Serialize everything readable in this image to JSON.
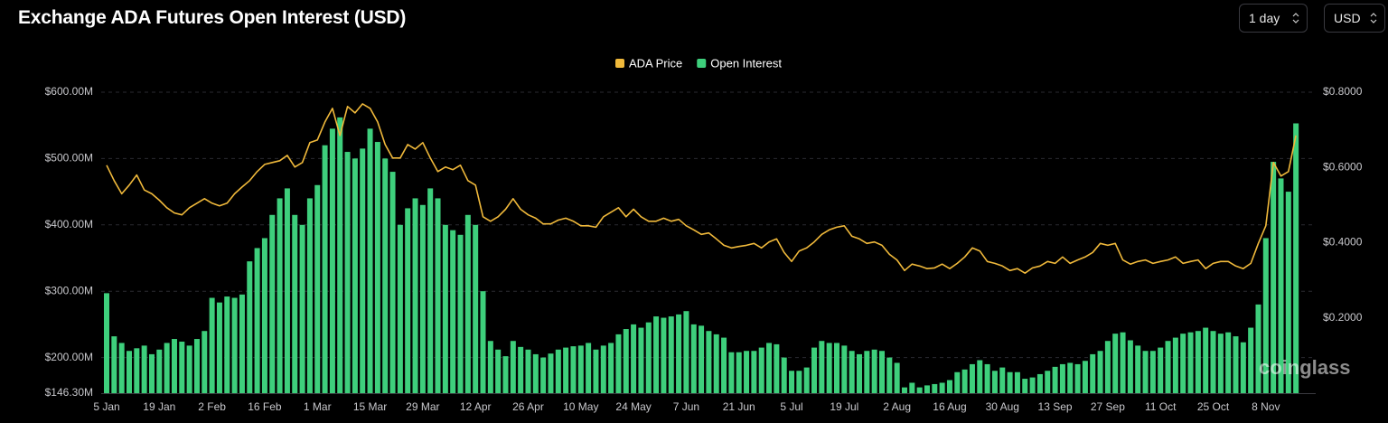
{
  "controls": {
    "interval": "1 day",
    "currency": "USD"
  },
  "chart_data": {
    "type": "combo",
    "title": "Exchange ADA Futures Open Interest (USD)",
    "watermark": "coinglass",
    "grid": true,
    "legend": "top",
    "categories": [
      "5 Jan",
      null,
      null,
      null,
      null,
      null,
      null,
      "19 Jan",
      null,
      null,
      null,
      null,
      null,
      null,
      "2 Feb",
      null,
      null,
      null,
      null,
      null,
      null,
      "16 Feb",
      null,
      null,
      null,
      null,
      null,
      null,
      "1 Mar",
      null,
      null,
      null,
      null,
      null,
      null,
      "15 Mar",
      null,
      null,
      null,
      null,
      null,
      null,
      "29 Mar",
      null,
      null,
      null,
      null,
      null,
      null,
      "12 Apr",
      null,
      null,
      null,
      null,
      null,
      null,
      "26 Apr",
      null,
      null,
      null,
      null,
      null,
      null,
      "10 May",
      null,
      null,
      null,
      null,
      null,
      null,
      "24 May",
      null,
      null,
      null,
      null,
      null,
      null,
      "7 Jun",
      null,
      null,
      null,
      null,
      null,
      null,
      "21 Jun",
      null,
      null,
      null,
      null,
      null,
      null,
      "5 Jul",
      null,
      null,
      null,
      null,
      null,
      null,
      "19 Jul",
      null,
      null,
      null,
      null,
      null,
      null,
      "2 Aug",
      null,
      null,
      null,
      null,
      null,
      null,
      "16 Aug",
      null,
      null,
      null,
      null,
      null,
      null,
      "30 Aug",
      null,
      null,
      null,
      null,
      null,
      null,
      "13 Sep",
      null,
      null,
      null,
      null,
      null,
      null,
      "27 Sep",
      null,
      null,
      null,
      null,
      null,
      null,
      "11 Oct",
      null,
      null,
      null,
      null,
      null,
      null,
      "25 Oct",
      null,
      null,
      null,
      null,
      null,
      null,
      "8 Nov",
      null,
      null,
      null,
      null
    ],
    "ylim": [
      146.3,
      600
    ],
    "yticks": [
      {
        "value": 146.3,
        "label": "$146.30M"
      },
      {
        "value": 200,
        "label": "$200.00M"
      },
      {
        "value": 300,
        "label": "$300.00M"
      },
      {
        "value": 400,
        "label": "$400.00M"
      },
      {
        "value": 500,
        "label": "$500.00M"
      },
      {
        "value": 600,
        "label": "$600.00M"
      }
    ],
    "y2lim": [
      0,
      0.8
    ],
    "y2ticks": [
      {
        "value": 0.2,
        "label": "$0.2000"
      },
      {
        "value": 0.4,
        "label": "$0.4000"
      },
      {
        "value": 0.6,
        "label": "$0.6000"
      },
      {
        "value": 0.8,
        "label": "$0.8000"
      }
    ],
    "series": [
      {
        "name": "ADA Price",
        "type": "line",
        "axis": "y2",
        "color": "#f0b93b",
        "values": [
          0.606,
          0.565,
          0.53,
          0.553,
          0.58,
          0.54,
          0.53,
          0.513,
          0.493,
          0.479,
          0.474,
          0.493,
          0.505,
          0.517,
          0.505,
          0.498,
          0.505,
          0.53,
          0.548,
          0.565,
          0.589,
          0.608,
          0.613,
          0.618,
          0.632,
          0.601,
          0.613,
          0.666,
          0.673,
          0.721,
          0.757,
          0.685,
          0.762,
          0.745,
          0.769,
          0.757,
          0.721,
          0.661,
          0.625,
          0.625,
          0.661,
          0.649,
          0.666,
          0.625,
          0.589,
          0.601,
          0.594,
          0.606,
          0.565,
          0.553,
          0.469,
          0.457,
          0.469,
          0.489,
          0.517,
          0.489,
          0.474,
          0.465,
          0.45,
          0.45,
          0.46,
          0.465,
          0.457,
          0.445,
          0.445,
          0.441,
          0.469,
          0.481,
          0.493,
          0.469,
          0.489,
          0.469,
          0.457,
          0.457,
          0.465,
          0.457,
          0.462,
          0.445,
          0.434,
          0.422,
          0.426,
          0.41,
          0.393,
          0.386,
          0.39,
          0.393,
          0.398,
          0.386,
          0.402,
          0.41,
          0.374,
          0.35,
          0.378,
          0.386,
          0.402,
          0.422,
          0.434,
          0.441,
          0.445,
          0.417,
          0.41,
          0.398,
          0.402,
          0.393,
          0.369,
          0.354,
          0.326,
          0.343,
          0.338,
          0.331,
          0.333,
          0.343,
          0.331,
          0.345,
          0.362,
          0.386,
          0.378,
          0.35,
          0.345,
          0.338,
          0.326,
          0.331,
          0.319,
          0.333,
          0.338,
          0.35,
          0.345,
          0.362,
          0.345,
          0.354,
          0.362,
          0.374,
          0.398,
          0.393,
          0.398,
          0.354,
          0.343,
          0.35,
          0.354,
          0.345,
          0.35,
          0.354,
          0.362,
          0.345,
          0.35,
          0.354,
          0.331,
          0.345,
          0.35,
          0.35,
          0.338,
          0.331,
          0.345,
          0.398,
          0.445,
          0.613,
          0.577,
          0.589,
          0.685
        ]
      },
      {
        "name": "Open Interest",
        "type": "bar",
        "color": "#3ecf7c",
        "values": [
          297,
          232,
          222,
          210,
          214,
          218,
          205,
          212,
          222,
          228,
          224,
          218,
          228,
          240,
          290,
          283,
          292,
          290,
          295,
          345,
          365,
          380,
          415,
          440,
          455,
          415,
          400,
          440,
          460,
          520,
          545,
          562,
          510,
          500,
          515,
          545,
          525,
          500,
          480,
          400,
          425,
          440,
          430,
          455,
          440,
          400,
          392,
          385,
          415,
          400,
          300,
          225,
          212,
          202,
          225,
          216,
          212,
          205,
          200,
          206,
          212,
          215,
          217,
          218,
          222,
          212,
          218,
          222,
          235,
          243,
          250,
          245,
          253,
          262,
          260,
          262,
          265,
          270,
          250,
          248,
          240,
          235,
          230,
          208,
          208,
          210,
          210,
          215,
          222,
          220,
          200,
          180,
          180,
          185,
          215,
          225,
          222,
          222,
          218,
          210,
          205,
          210,
          212,
          210,
          200,
          192,
          155,
          162,
          155,
          158,
          160,
          162,
          166,
          178,
          182,
          190,
          196,
          190,
          180,
          185,
          178,
          178,
          168,
          170,
          175,
          180,
          186,
          190,
          192,
          190,
          195,
          205,
          210,
          225,
          236,
          238,
          226,
          218,
          210,
          210,
          215,
          225,
          230,
          236,
          238,
          240,
          245,
          240,
          236,
          238,
          232,
          223,
          245,
          280,
          380,
          495,
          470,
          450,
          553
        ]
      }
    ]
  }
}
